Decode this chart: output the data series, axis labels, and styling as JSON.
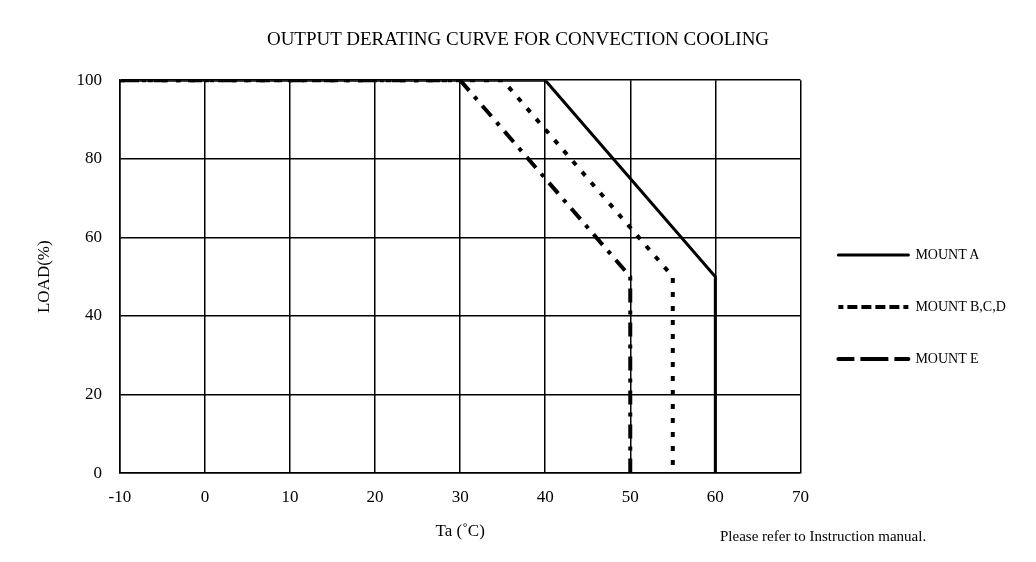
{
  "chart_data": {
    "type": "line",
    "title": "OUTPUT DERATING CURVE FOR CONVECTION COOLING",
    "xlabel": "Ta (˚C)",
    "ylabel": "LOAD(%)",
    "xlim": [
      -10,
      70
    ],
    "xticks": [
      -10,
      0,
      10,
      20,
      30,
      40,
      50,
      60,
      70
    ],
    "ylim": [
      0,
      100
    ],
    "yticks": [
      0,
      20,
      40,
      60,
      80,
      100
    ],
    "grid": true,
    "legend": "right",
    "marker": "none",
    "series": [
      {
        "name": "MOUNT A",
        "color": "#000000",
        "line_style": "solid",
        "x": [
          -10,
          40,
          60,
          60
        ],
        "values": [
          100,
          100,
          50,
          0
        ]
      },
      {
        "name": "MOUNT B,C,D",
        "color": "#000000",
        "line_style": "dotted",
        "x": [
          -10,
          35,
          55,
          55
        ],
        "values": [
          100,
          100,
          50,
          0
        ]
      },
      {
        "name": "MOUNT E",
        "color": "#000000",
        "line_style": "dashed",
        "x": [
          -10,
          30,
          50,
          50
        ],
        "values": [
          100,
          100,
          50,
          0
        ]
      }
    ],
    "annotations": [
      "Please refer to Instruction manual."
    ]
  }
}
